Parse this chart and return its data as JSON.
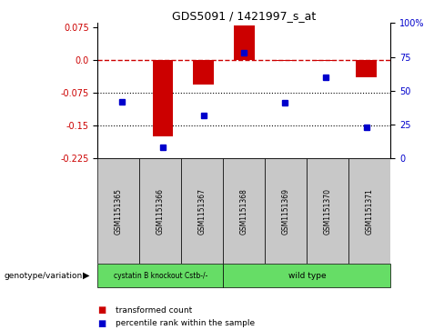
{
  "title": "GDS5091 / 1421997_s_at",
  "samples": [
    "GSM1151365",
    "GSM1151366",
    "GSM1151367",
    "GSM1151368",
    "GSM1151369",
    "GSM1151370",
    "GSM1151371"
  ],
  "transformed_count": [
    0.0,
    -0.175,
    -0.055,
    0.08,
    -0.002,
    -0.001,
    -0.04
  ],
  "percentile_rank": [
    42,
    8,
    32,
    78,
    41,
    60,
    23
  ],
  "ylim_left": [
    -0.225,
    0.085
  ],
  "ylim_right": [
    0,
    100
  ],
  "yticks_left": [
    0.075,
    0.0,
    -0.075,
    -0.15,
    -0.225
  ],
  "yticks_right": [
    100,
    75,
    50,
    25,
    0
  ],
  "hlines": [
    -0.075,
    -0.15
  ],
  "zero_line": 0.0,
  "group1_label": "cystatin B knockout Cstb-/-",
  "group2_label": "wild type",
  "group1_count": 3,
  "group2_count": 4,
  "group_color": "#66DD66",
  "bar_color": "#CC0000",
  "dot_color": "#0000CC",
  "legend_items": [
    "transformed count",
    "percentile rank within the sample"
  ],
  "bg_color": "#FFFFFF",
  "left_axis_color": "#CC0000",
  "right_axis_color": "#0000CC",
  "sample_bg_color": "#C8C8C8",
  "genotype_label": "genotype/variation"
}
